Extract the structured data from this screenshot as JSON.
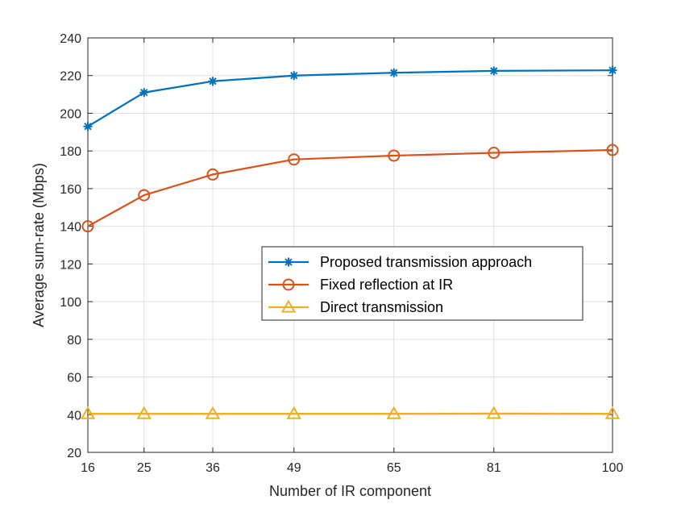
{
  "chart_data": {
    "type": "line",
    "title": "",
    "xlabel": "Number of IR component",
    "ylabel": "Average sum-rate (Mbps)",
    "x": [
      16,
      25,
      36,
      49,
      65,
      81,
      100
    ],
    "x_tick_labels": [
      "16",
      "25",
      "36",
      "49",
      "65",
      "81",
      "100"
    ],
    "xlim": [
      16,
      100
    ],
    "ylim": [
      20,
      240
    ],
    "y_ticks": [
      20,
      40,
      60,
      80,
      100,
      120,
      140,
      160,
      180,
      200,
      220,
      240
    ],
    "grid": true,
    "legend_position": "center-right",
    "series": [
      {
        "name": "Proposed transmission approach",
        "values": [
          193,
          211,
          217,
          220,
          221.5,
          222.5,
          222.8
        ],
        "color": "#0072BD",
        "marker": "asterisk"
      },
      {
        "name": "Fixed reflection at IR",
        "values": [
          140,
          156.5,
          167.5,
          175.5,
          177.5,
          179,
          180.5
        ],
        "color": "#D95319",
        "marker": "circle"
      },
      {
        "name": "Direct transmission",
        "values": [
          40.5,
          40.5,
          40.5,
          40.5,
          40.5,
          40.6,
          40.5
        ],
        "color": "#EDB120",
        "marker": "triangle"
      }
    ]
  }
}
